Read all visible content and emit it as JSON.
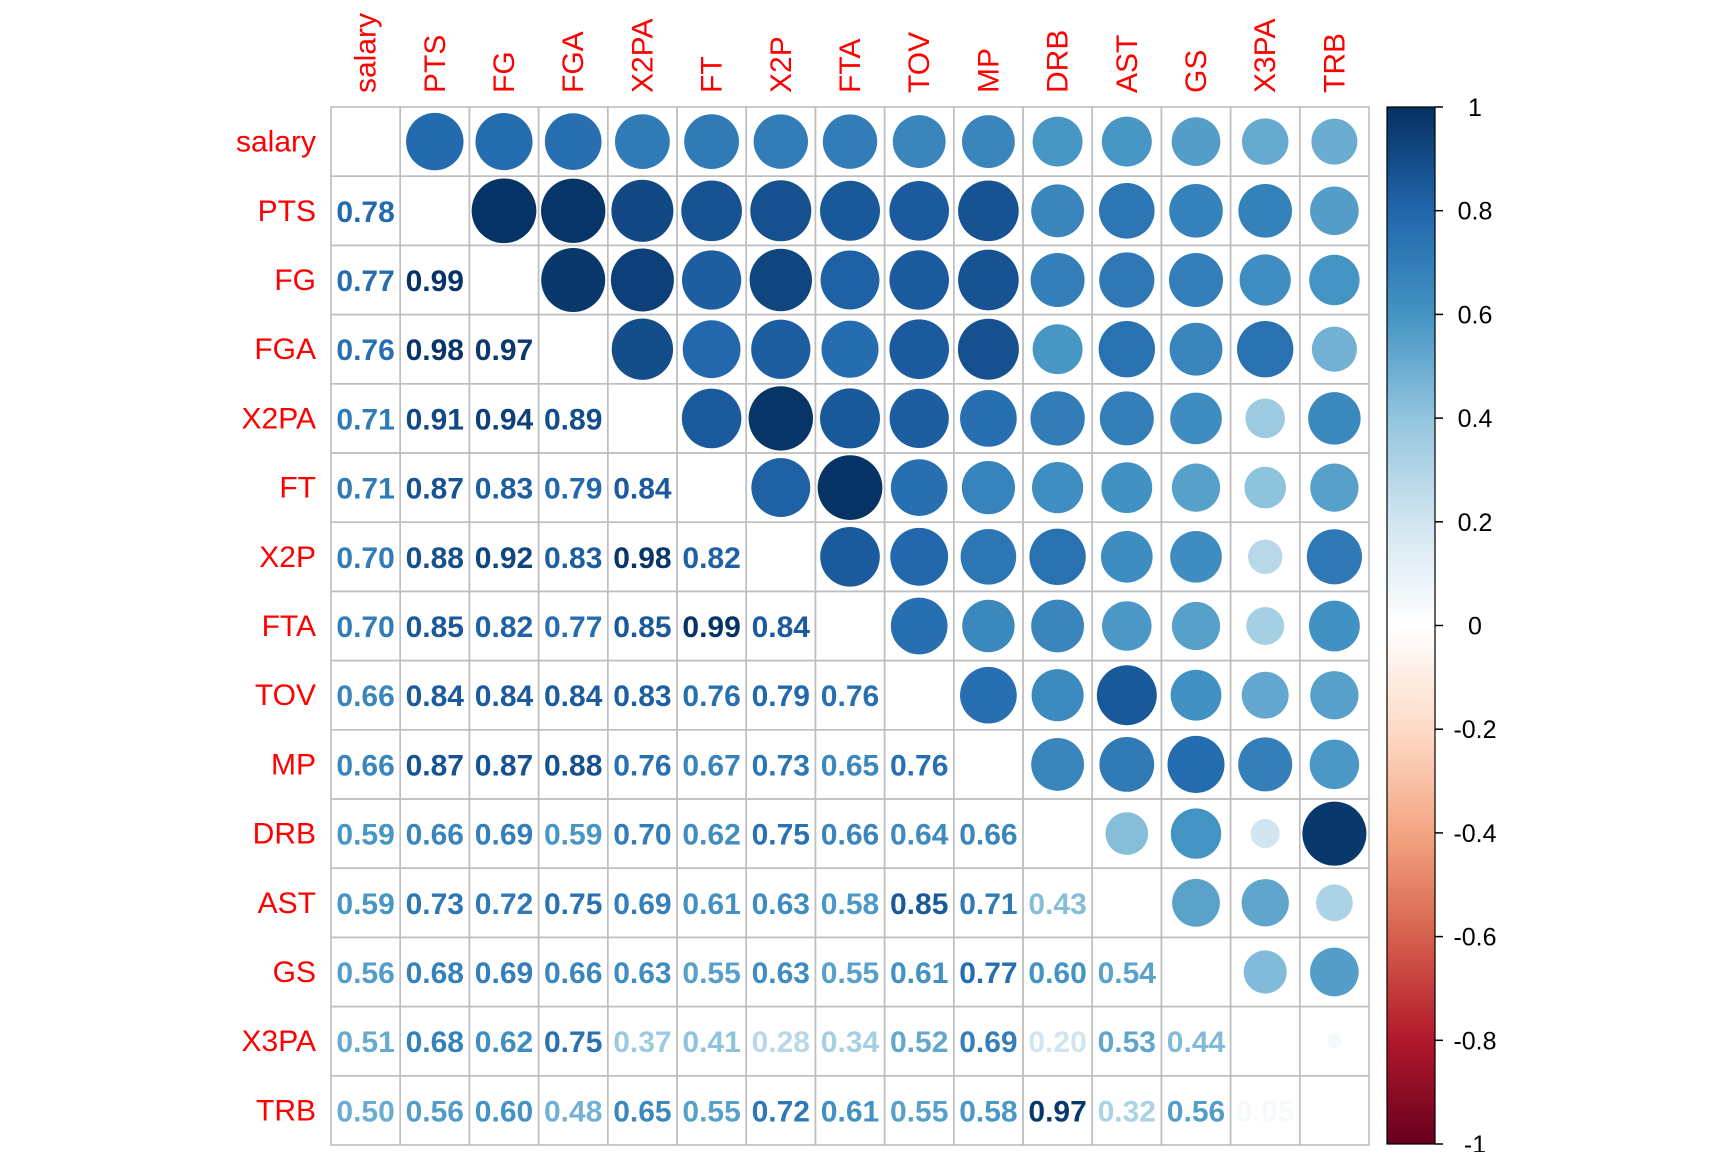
{
  "chart_data": {
    "type": "heatmap",
    "style": "mixed correlation plot: circles in upper triangle, numeric coefficients in lower triangle",
    "variables": [
      "salary",
      "PTS",
      "FG",
      "FGA",
      "X2PA",
      "FT",
      "X2P",
      "FTA",
      "TOV",
      "MP",
      "DRB",
      "AST",
      "GS",
      "X3PA",
      "TRB"
    ],
    "lower_matrix": [
      [],
      [
        0.78
      ],
      [
        0.77,
        0.99
      ],
      [
        0.76,
        0.98,
        0.97
      ],
      [
        0.71,
        0.91,
        0.94,
        0.89
      ],
      [
        0.71,
        0.87,
        0.83,
        0.79,
        0.84
      ],
      [
        0.7,
        0.88,
        0.92,
        0.83,
        0.98,
        0.82
      ],
      [
        0.7,
        0.85,
        0.82,
        0.77,
        0.85,
        0.99,
        0.84
      ],
      [
        0.66,
        0.84,
        0.84,
        0.84,
        0.83,
        0.76,
        0.79,
        0.76
      ],
      [
        0.66,
        0.87,
        0.87,
        0.88,
        0.76,
        0.67,
        0.73,
        0.65,
        0.76
      ],
      [
        0.59,
        0.66,
        0.69,
        0.59,
        0.7,
        0.62,
        0.75,
        0.66,
        0.64,
        0.66
      ],
      [
        0.59,
        0.73,
        0.72,
        0.75,
        0.69,
        0.61,
        0.63,
        0.58,
        0.85,
        0.71,
        0.43
      ],
      [
        0.56,
        0.68,
        0.69,
        0.66,
        0.63,
        0.55,
        0.63,
        0.55,
        0.61,
        0.77,
        0.6,
        0.54
      ],
      [
        0.51,
        0.68,
        0.62,
        0.75,
        0.37,
        0.41,
        0.28,
        0.34,
        0.52,
        0.69,
        0.2,
        0.53,
        0.44
      ],
      [
        0.5,
        0.56,
        0.6,
        0.48,
        0.65,
        0.55,
        0.72,
        0.61,
        0.55,
        0.58,
        0.97,
        0.32,
        0.56,
        0.05
      ]
    ],
    "colorbar": {
      "ticks": [
        "1",
        "0.8",
        "0.6",
        "0.4",
        "0.2",
        "0",
        "-0.2",
        "-0.4",
        "-0.6",
        "-0.8",
        "-1"
      ],
      "range": [
        -1,
        1
      ]
    },
    "label_color": "#FF0000",
    "palette": [
      "#67001F",
      "#B2182B",
      "#D6604D",
      "#F4A582",
      "#FDDBC7",
      "#FFFFFF",
      "#D1E5F0",
      "#92C5DE",
      "#4393C3",
      "#2166AC",
      "#053061"
    ]
  }
}
